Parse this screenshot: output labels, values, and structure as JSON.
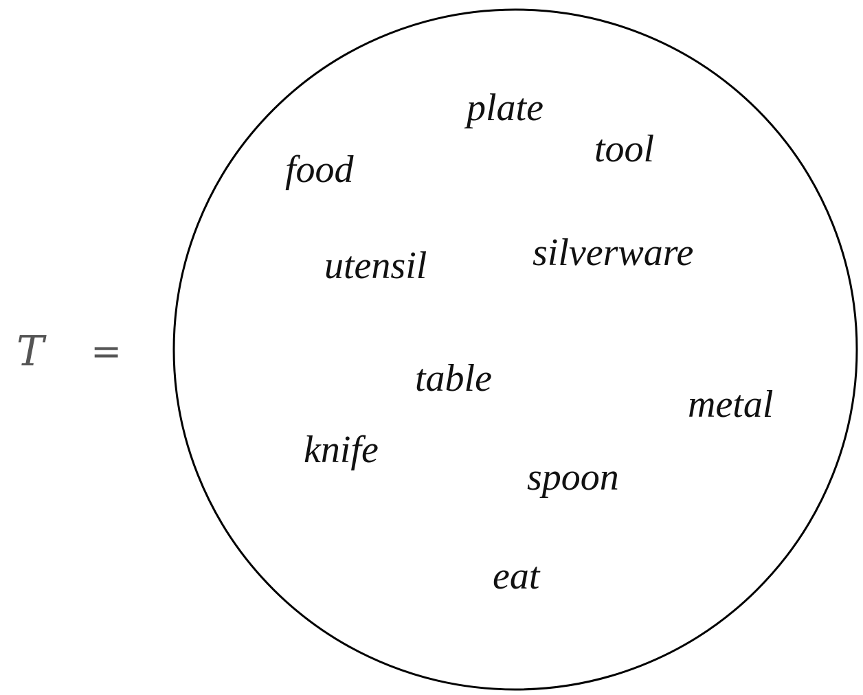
{
  "equation": {
    "symbol": "T",
    "operator": "="
  },
  "set": {
    "words": [
      "plate",
      "tool",
      "food",
      "silverware",
      "utensil",
      "table",
      "metal",
      "knife",
      "spoon",
      "eat"
    ]
  },
  "colors": {
    "background": "#ffffff",
    "circle_stroke": "#000000",
    "word_text": "#111111",
    "symbol_text": "#555555"
  }
}
